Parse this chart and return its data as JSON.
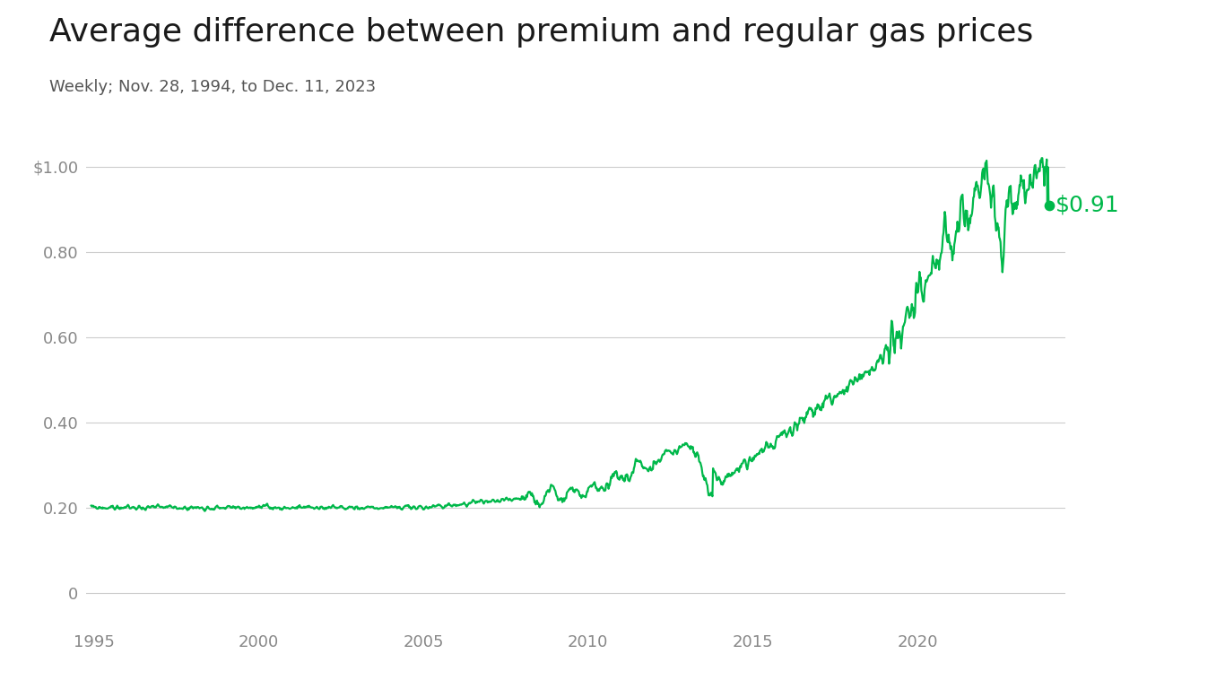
{
  "title": "Average difference between premium and regular gas prices",
  "subtitle": "Weekly; Nov. 28, 1994, to Dec. 11, 2023",
  "line_color": "#00b84a",
  "annotation_color": "#00b84a",
  "annotation_text": "$0.91",
  "background_color": "#ffffff",
  "grid_color": "#cccccc",
  "tick_color": "#888888",
  "title_color": "#1a1a1a",
  "subtitle_color": "#555555",
  "yticks": [
    0,
    0.2,
    0.4,
    0.6,
    0.8,
    1.0
  ],
  "ytick_labels": [
    "0",
    "0.20",
    "0.40",
    "0.60",
    "0.80",
    "$1.00"
  ],
  "xtick_years": [
    1995,
    2000,
    2005,
    2010,
    2015,
    2020
  ],
  "ylim": [
    -0.08,
    1.1
  ],
  "xlim_start": 1994.75,
  "xlim_end": 2024.5,
  "title_fontsize": 26,
  "subtitle_fontsize": 13,
  "tick_fontsize": 13,
  "annotation_fontsize": 18,
  "line_width": 1.6
}
